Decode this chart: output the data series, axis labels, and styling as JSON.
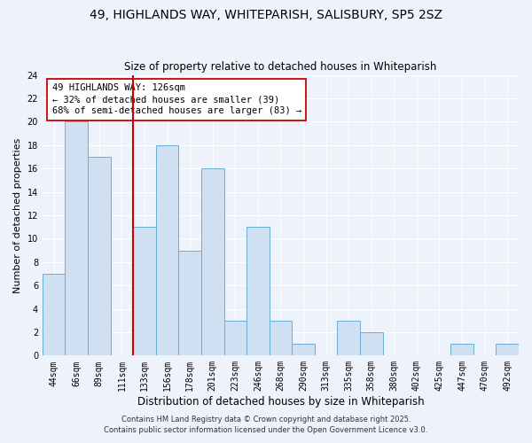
{
  "title": "49, HIGHLANDS WAY, WHITEPARISH, SALISBURY, SP5 2SZ",
  "subtitle": "Size of property relative to detached houses in Whiteparish",
  "xlabel": "Distribution of detached houses by size in Whiteparish",
  "ylabel": "Number of detached properties",
  "bar_labels": [
    "44sqm",
    "66sqm",
    "89sqm",
    "111sqm",
    "133sqm",
    "156sqm",
    "178sqm",
    "201sqm",
    "223sqm",
    "246sqm",
    "268sqm",
    "290sqm",
    "313sqm",
    "335sqm",
    "358sqm",
    "380sqm",
    "402sqm",
    "425sqm",
    "447sqm",
    "470sqm",
    "492sqm"
  ],
  "bar_values": [
    7,
    20,
    17,
    0,
    11,
    18,
    9,
    16,
    3,
    11,
    3,
    1,
    0,
    3,
    2,
    0,
    0,
    0,
    1,
    0,
    1
  ],
  "bar_color": "#cfe0f3",
  "bar_edge_color": "#6baed6",
  "ylim": [
    0,
    24
  ],
  "yticks": [
    0,
    2,
    4,
    6,
    8,
    10,
    12,
    14,
    16,
    18,
    20,
    22,
    24
  ],
  "vline_x_index": 3,
  "vline_color": "#cc0000",
  "annotation_text": "49 HIGHLANDS WAY: 126sqm\n← 32% of detached houses are smaller (39)\n68% of semi-detached houses are larger (83) →",
  "annotation_box_color": "#ffffff",
  "annotation_box_edge": "#cc0000",
  "footer1": "Contains HM Land Registry data © Crown copyright and database right 2025.",
  "footer2": "Contains public sector information licensed under the Open Government Licence v3.0.",
  "background_color": "#eef2fb",
  "grid_color": "#ffffff",
  "title_fontsize": 10,
  "subtitle_fontsize": 8.5,
  "xlabel_fontsize": 8.5,
  "ylabel_fontsize": 8,
  "tick_fontsize": 7,
  "annotation_fontsize": 7.5,
  "footer_fontsize": 6
}
